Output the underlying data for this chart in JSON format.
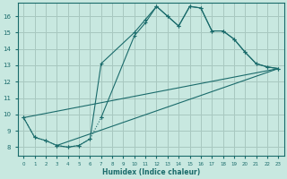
{
  "xlabel": "Humidex (Indice chaleur)",
  "bg_color": "#c8e8e0",
  "grid_color": "#a8c8c0",
  "line_color": "#1a6b6b",
  "xlim": [
    -0.5,
    23.5
  ],
  "ylim": [
    7.5,
    16.8
  ],
  "xticks": [
    0,
    1,
    2,
    3,
    4,
    5,
    6,
    7,
    8,
    9,
    10,
    11,
    12,
    13,
    14,
    15,
    16,
    17,
    18,
    19,
    20,
    21,
    22,
    23
  ],
  "yticks": [
    8,
    9,
    10,
    11,
    12,
    13,
    14,
    15,
    16
  ],
  "line1_x": [
    0,
    1,
    2,
    3,
    4,
    5,
    6,
    7,
    10,
    11,
    12,
    13,
    14,
    15,
    16,
    17,
    18,
    19,
    20,
    21,
    22,
    23
  ],
  "line1_y": [
    9.8,
    8.6,
    8.4,
    8.1,
    8.0,
    8.1,
    8.5,
    13.1,
    15.0,
    15.8,
    16.6,
    16.0,
    15.4,
    16.6,
    16.5,
    15.1,
    15.1,
    14.6,
    13.8,
    13.1,
    12.9,
    12.8
  ],
  "line2_x": [
    0,
    1,
    2,
    3,
    4,
    5,
    6,
    7,
    10,
    11,
    12,
    13,
    14,
    15,
    16,
    17,
    18,
    19,
    20,
    21,
    22,
    23
  ],
  "line2_y": [
    9.8,
    8.6,
    8.4,
    8.1,
    8.0,
    8.1,
    8.5,
    9.8,
    14.8,
    15.6,
    16.6,
    16.0,
    15.4,
    16.6,
    16.5,
    15.1,
    15.1,
    14.6,
    13.8,
    13.1,
    12.9,
    12.8
  ],
  "line3_x": [
    0,
    23
  ],
  "line3_y": [
    9.8,
    12.8
  ],
  "line4_x": [
    3,
    23
  ],
  "line4_y": [
    8.1,
    12.8
  ]
}
